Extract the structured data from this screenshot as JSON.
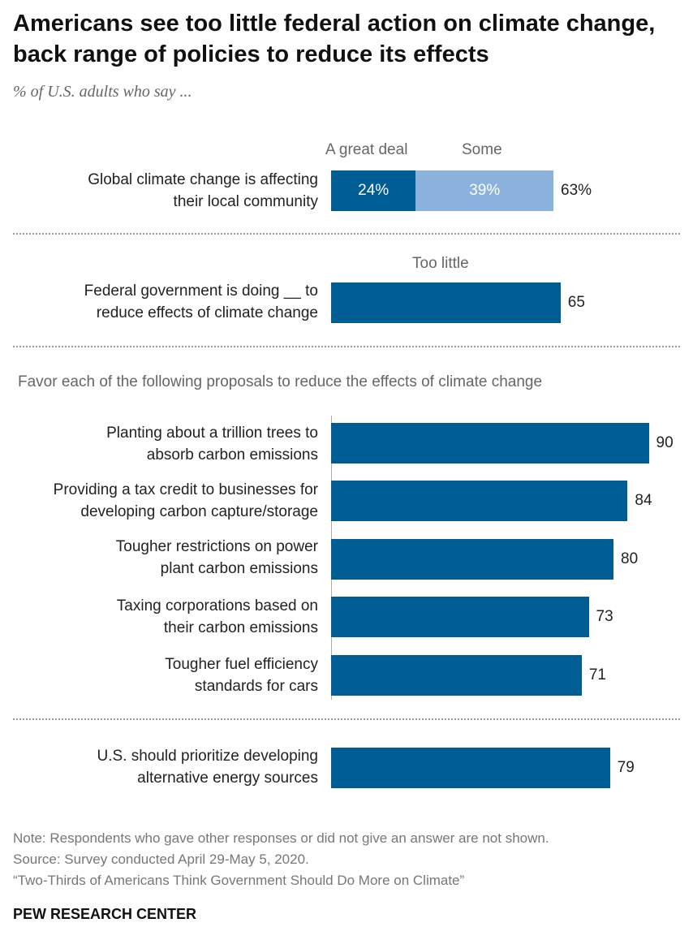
{
  "title": "Americans see too little federal action on climate change, back range of policies to reduce its effects",
  "subtitle": "% of U.S. adults who say ...",
  "colors": {
    "dark": "#005d93",
    "light": "#8bb2dc"
  },
  "chart_data": [
    {
      "type": "bar",
      "stacked": true,
      "categories": [
        "Global climate change is affecting their local community"
      ],
      "series": [
        {
          "name": "A great deal",
          "values": [
            24
          ]
        },
        {
          "name": "Some",
          "values": [
            39
          ]
        }
      ],
      "value_labels": [
        "24%",
        "39%"
      ],
      "total_label": "63%",
      "totals": [
        63
      ]
    },
    {
      "type": "bar",
      "categories": [
        "Federal government is doing __ to reduce effects of climate change"
      ],
      "series": [
        {
          "name": "Too little",
          "values": [
            65
          ]
        }
      ]
    },
    {
      "type": "bar",
      "title": "Favor each of the following proposals to reduce the effects of climate change",
      "categories": [
        "Planting about a trillion trees to absorb carbon emissions",
        "Providing a tax credit to businesses for developing carbon capture/storage",
        "Tougher restrictions on power plant carbon emissions",
        "Taxing corporations based on their carbon emissions",
        "Tougher fuel efficiency standards for cars"
      ],
      "values": [
        90,
        84,
        80,
        73,
        71
      ]
    },
    {
      "type": "bar",
      "categories": [
        "U.S. should prioritize developing alternative energy sources"
      ],
      "values": [
        79
      ]
    }
  ],
  "labels": {
    "q1": [
      "Global climate change is affecting",
      "their local community"
    ],
    "q2": [
      "Federal government is doing __ to",
      "reduce effects of climate change"
    ],
    "p1": [
      "Planting about a trillion trees to",
      "absorb carbon emissions"
    ],
    "p2": [
      "Providing a tax credit to businesses for",
      "developing carbon capture/storage"
    ],
    "p3": [
      "Tougher restrictions on power",
      "plant carbon emissions"
    ],
    "p4": [
      "Taxing corporations based on",
      "their carbon emissions"
    ],
    "p5": [
      "Tougher fuel efficiency",
      "standards for cars"
    ],
    "q4": [
      "U.S. should prioritize developing",
      "alternative energy sources"
    ]
  },
  "notes": {
    "note": "Note: Respondents who gave other responses or did not give an answer are not shown.",
    "source": "Source: Survey conducted April 29-May 5, 2020.",
    "report": "“Two-Thirds of Americans Think Government Should Do More on Climate”",
    "brand": "PEW RESEARCH CENTER"
  }
}
